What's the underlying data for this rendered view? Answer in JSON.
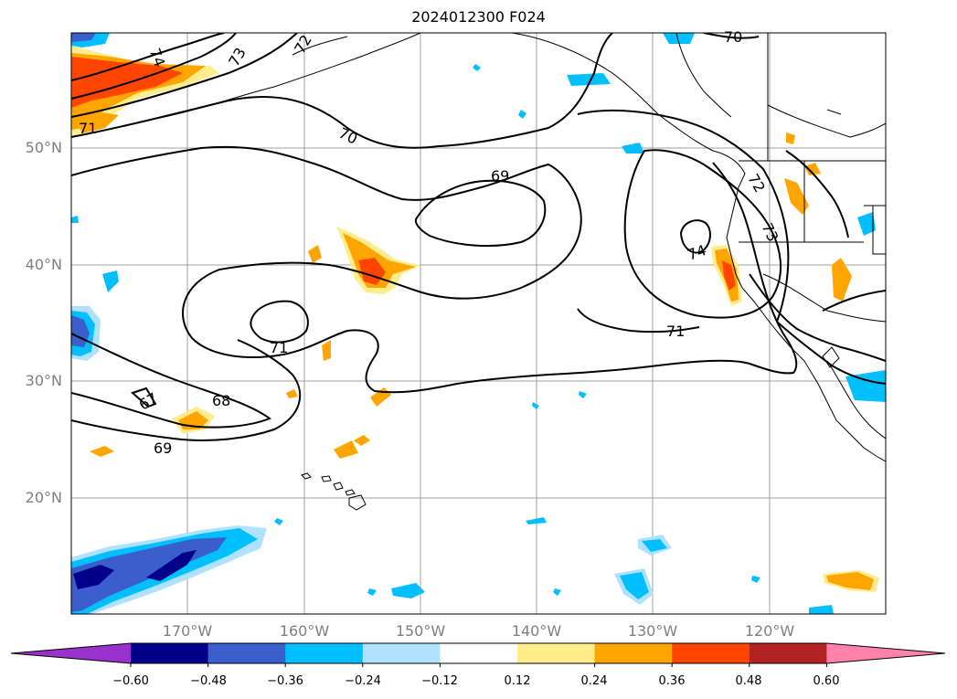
{
  "title": "2024012300 F024",
  "map": {
    "lat_labels": [
      "50°N",
      "40°N",
      "30°N",
      "20°N"
    ],
    "lon_labels": [
      "170°W",
      "160°W",
      "150°W",
      "140°W",
      "130°W",
      "120°W"
    ],
    "lat_range": [
      10,
      60
    ],
    "lon_range": [
      -180,
      -110
    ],
    "grid": true,
    "contour_labels": [
      "74",
      "73",
      "72",
      "71",
      "70",
      "69",
      "74",
      "72",
      "73",
      "71",
      "71",
      "68",
      "67",
      "69",
      "70"
    ]
  },
  "colorbar": {
    "tick_labels": [
      "−0.60",
      "−0.48",
      "−0.36",
      "−0.24",
      "−0.12",
      "0.12",
      "0.24",
      "0.36",
      "0.48",
      "0.60"
    ],
    "colors": [
      "#9932cc",
      "#00008b",
      "#3a5fcd",
      "#00bfff",
      "#b0e2ff",
      "#ffffff",
      "#ffec8b",
      "#ffa500",
      "#ff4500",
      "#b22222",
      "#ff82ab"
    ],
    "extend": "both"
  }
}
